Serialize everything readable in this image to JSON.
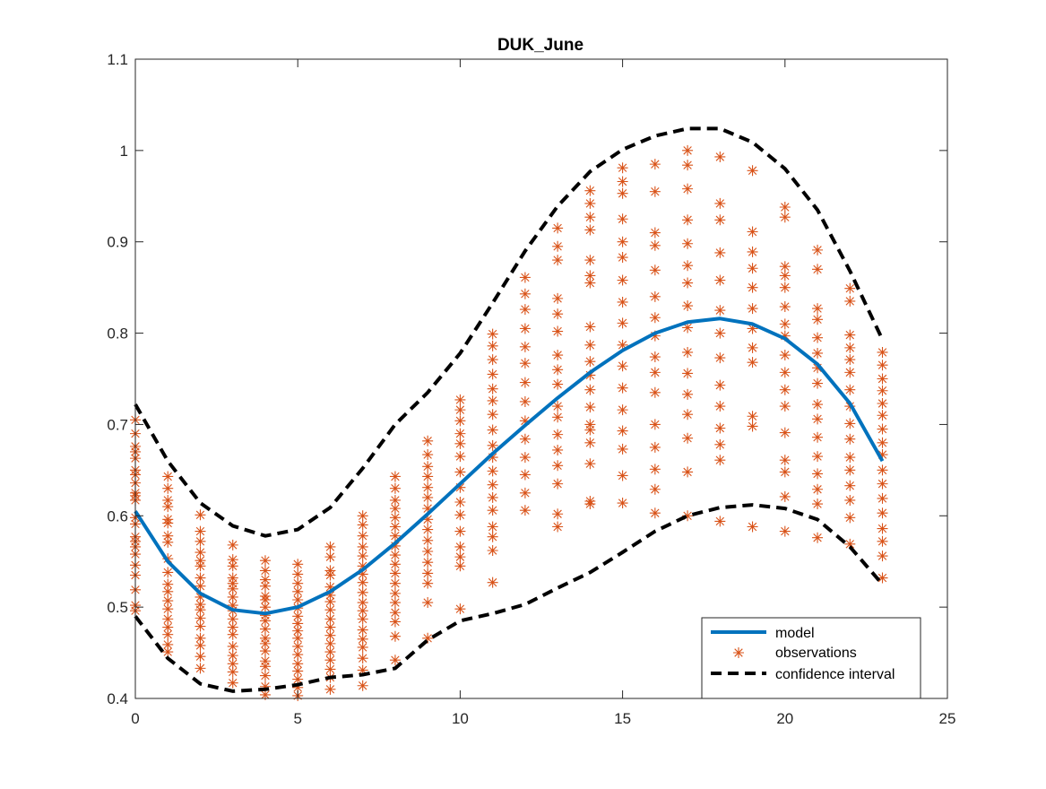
{
  "chart_data": {
    "type": "line",
    "title": "DUK_June",
    "xlabel": "",
    "ylabel": "",
    "xlim": [
      0,
      25
    ],
    "ylim": [
      0.4,
      1.1
    ],
    "x_ticks": [
      0,
      5,
      10,
      15,
      20,
      25
    ],
    "y_ticks": [
      0.4,
      0.5,
      0.6,
      0.7,
      0.8,
      0.9,
      1,
      1.1
    ],
    "x_tick_labels": [
      "0",
      "5",
      "10",
      "15",
      "20",
      "25"
    ],
    "y_tick_labels": [
      "0.4",
      "0.5",
      "0.6",
      "0.7",
      "0.8",
      "0.9",
      "1",
      "1.1"
    ],
    "grid": false,
    "legend_position": "bottom-right",
    "legend": [
      "model",
      "observations",
      "confidence interval"
    ],
    "colors": {
      "model": "#0072BD",
      "observations": "#D95319",
      "confidence_interval": "#000000"
    },
    "model": {
      "x": [
        0,
        1,
        2,
        3,
        4,
        5,
        6,
        7,
        8,
        9,
        10,
        11,
        12,
        13,
        14,
        15,
        16,
        17,
        18,
        19,
        20,
        21,
        22,
        23
      ],
      "y": [
        0.605,
        0.55,
        0.515,
        0.497,
        0.493,
        0.5,
        0.517,
        0.541,
        0.57,
        0.602,
        0.635,
        0.668,
        0.699,
        0.729,
        0.757,
        0.781,
        0.8,
        0.812,
        0.816,
        0.81,
        0.794,
        0.766,
        0.723,
        0.66
      ]
    },
    "confidence_interval": {
      "x": [
        0,
        1,
        2,
        3,
        4,
        5,
        6,
        7,
        8,
        9,
        10,
        11,
        12,
        13,
        14,
        15,
        16,
        17,
        18,
        19,
        20,
        21,
        22,
        23
      ],
      "upper": [
        0.722,
        0.66,
        0.614,
        0.589,
        0.578,
        0.585,
        0.609,
        0.652,
        0.7,
        0.735,
        0.778,
        0.833,
        0.89,
        0.939,
        0.977,
        1.001,
        1.016,
        1.024,
        1.024,
        1.009,
        0.98,
        0.935,
        0.868,
        0.793
      ],
      "lower": [
        0.49,
        0.444,
        0.416,
        0.408,
        0.41,
        0.415,
        0.423,
        0.426,
        0.433,
        0.464,
        0.485,
        0.493,
        0.503,
        0.521,
        0.538,
        0.56,
        0.583,
        0.6,
        0.609,
        0.612,
        0.608,
        0.596,
        0.566,
        0.525
      ]
    },
    "observations": [
      {
        "x": 0,
        "y": [
          0.705,
          0.69,
          0.676,
          0.67,
          0.663,
          0.65,
          0.645,
          0.636,
          0.625,
          0.622,
          0.617,
          0.598,
          0.591,
          0.577,
          0.572,
          0.566,
          0.558,
          0.546,
          0.535,
          0.519,
          0.496,
          0.502
        ]
      },
      {
        "x": 1,
        "y": [
          0.643,
          0.63,
          0.617,
          0.61,
          0.596,
          0.592,
          0.578,
          0.571,
          0.553,
          0.538,
          0.525,
          0.517,
          0.507,
          0.498,
          0.487,
          0.478,
          0.47,
          0.459,
          0.451
        ]
      },
      {
        "x": 2,
        "y": [
          0.601,
          0.583,
          0.572,
          0.56,
          0.551,
          0.545,
          0.532,
          0.523,
          0.511,
          0.503,
          0.497,
          0.488,
          0.479,
          0.466,
          0.458,
          0.446,
          0.433
        ]
      },
      {
        "x": 3,
        "y": [
          0.568,
          0.552,
          0.545,
          0.532,
          0.526,
          0.52,
          0.511,
          0.502,
          0.496,
          0.487,
          0.478,
          0.47,
          0.457,
          0.447,
          0.438,
          0.429,
          0.417
        ]
      },
      {
        "x": 4,
        "y": [
          0.551,
          0.54,
          0.53,
          0.523,
          0.512,
          0.508,
          0.5,
          0.491,
          0.485,
          0.476,
          0.466,
          0.46,
          0.452,
          0.441,
          0.435,
          0.425,
          0.413,
          0.404
        ]
      },
      {
        "x": 5,
        "y": [
          0.547,
          0.536,
          0.526,
          0.517,
          0.508,
          0.499,
          0.49,
          0.482,
          0.474,
          0.466,
          0.457,
          0.448,
          0.438,
          0.43,
          0.421,
          0.412,
          0.403
        ]
      },
      {
        "x": 6,
        "y": [
          0.566,
          0.555,
          0.54,
          0.535,
          0.522,
          0.513,
          0.506,
          0.497,
          0.487,
          0.478,
          0.469,
          0.46,
          0.451,
          0.442,
          0.432,
          0.423,
          0.41
        ]
      },
      {
        "x": 7,
        "y": [
          0.6,
          0.59,
          0.578,
          0.566,
          0.556,
          0.545,
          0.536,
          0.527,
          0.516,
          0.505,
          0.496,
          0.487,
          0.475,
          0.465,
          0.456,
          0.444,
          0.431,
          0.414
        ]
      },
      {
        "x": 8,
        "y": [
          0.643,
          0.63,
          0.617,
          0.608,
          0.598,
          0.588,
          0.578,
          0.567,
          0.557,
          0.547,
          0.537,
          0.526,
          0.515,
          0.505,
          0.494,
          0.484,
          0.468,
          0.442
        ]
      },
      {
        "x": 9,
        "y": [
          0.682,
          0.667,
          0.654,
          0.643,
          0.631,
          0.62,
          0.608,
          0.596,
          0.585,
          0.573,
          0.561,
          0.549,
          0.537,
          0.526,
          0.505,
          0.466
        ]
      },
      {
        "x": 10,
        "y": [
          0.727,
          0.716,
          0.704,
          0.69,
          0.679,
          0.665,
          0.648,
          0.631,
          0.615,
          0.601,
          0.583,
          0.566,
          0.555,
          0.545,
          0.498
        ]
      },
      {
        "x": 11,
        "y": [
          0.799,
          0.786,
          0.771,
          0.755,
          0.739,
          0.726,
          0.711,
          0.694,
          0.677,
          0.664,
          0.649,
          0.634,
          0.62,
          0.606,
          0.588,
          0.577,
          0.562,
          0.527
        ]
      },
      {
        "x": 12,
        "y": [
          0.861,
          0.843,
          0.826,
          0.805,
          0.785,
          0.767,
          0.746,
          0.725,
          0.704,
          0.684,
          0.664,
          0.645,
          0.625,
          0.606
        ]
      },
      {
        "x": 13,
        "y": [
          0.915,
          0.895,
          0.88,
          0.838,
          0.821,
          0.802,
          0.776,
          0.76,
          0.744,
          0.72,
          0.708,
          0.689,
          0.672,
          0.655,
          0.635,
          0.602,
          0.588
        ]
      },
      {
        "x": 14,
        "y": [
          0.956,
          0.942,
          0.927,
          0.913,
          0.88,
          0.863,
          0.855,
          0.807,
          0.787,
          0.769,
          0.754,
          0.738,
          0.719,
          0.7,
          0.694,
          0.68,
          0.657,
          0.616,
          0.613
        ]
      },
      {
        "x": 15,
        "y": [
          0.981,
          0.966,
          0.953,
          0.925,
          0.9,
          0.883,
          0.858,
          0.834,
          0.811,
          0.787,
          0.764,
          0.74,
          0.716,
          0.693,
          0.673,
          0.644,
          0.614
        ]
      },
      {
        "x": 16,
        "y": [
          0.985,
          0.955,
          0.91,
          0.896,
          0.869,
          0.84,
          0.817,
          0.797,
          0.774,
          0.757,
          0.735,
          0.7,
          0.675,
          0.651,
          0.629,
          0.603
        ]
      },
      {
        "x": 17,
        "y": [
          1.0,
          0.984,
          0.958,
          0.924,
          0.898,
          0.874,
          0.855,
          0.83,
          0.806,
          0.779,
          0.756,
          0.733,
          0.711,
          0.685,
          0.648,
          0.6
        ]
      },
      {
        "x": 18,
        "y": [
          0.993,
          0.942,
          0.924,
          0.888,
          0.858,
          0.825,
          0.8,
          0.773,
          0.743,
          0.72,
          0.696,
          0.678,
          0.661,
          0.594
        ]
      },
      {
        "x": 19,
        "y": [
          0.978,
          0.911,
          0.889,
          0.871,
          0.85,
          0.827,
          0.805,
          0.784,
          0.768,
          0.709,
          0.698,
          0.588
        ]
      },
      {
        "x": 20,
        "y": [
          0.938,
          0.927,
          0.873,
          0.863,
          0.85,
          0.829,
          0.81,
          0.797,
          0.776,
          0.757,
          0.738,
          0.72,
          0.691,
          0.661,
          0.648,
          0.621,
          0.583
        ]
      },
      {
        "x": 21,
        "y": [
          0.891,
          0.87,
          0.827,
          0.815,
          0.795,
          0.778,
          0.762,
          0.745,
          0.722,
          0.706,
          0.686,
          0.665,
          0.646,
          0.629,
          0.613,
          0.576
        ]
      },
      {
        "x": 22,
        "y": [
          0.849,
          0.835,
          0.798,
          0.784,
          0.771,
          0.757,
          0.738,
          0.72,
          0.701,
          0.684,
          0.664,
          0.65,
          0.633,
          0.617,
          0.598,
          0.569
        ]
      },
      {
        "x": 23,
        "y": [
          0.779,
          0.765,
          0.75,
          0.737,
          0.723,
          0.71,
          0.695,
          0.68,
          0.667,
          0.65,
          0.635,
          0.619,
          0.603,
          0.586,
          0.572,
          0.556,
          0.532
        ]
      }
    ]
  }
}
